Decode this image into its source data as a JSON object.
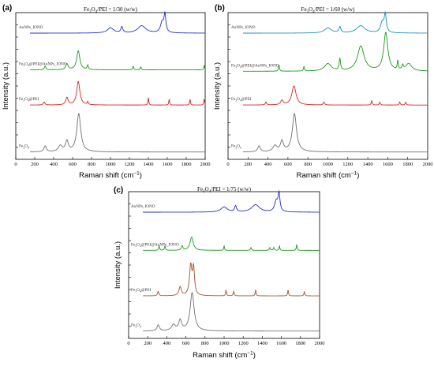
{
  "chart_data": [
    {
      "type": "line",
      "panel": "(a)",
      "title": "Fe3O4/PEI = 1/30 (w/w)",
      "title_parts": {
        "pre": "Fe",
        "sub1": "3",
        "mid": "O",
        "sub2": "4",
        "post": "/PEI = 1/30 (w/w)"
      },
      "xlabel": "Raman shift (cm",
      "xlabel_sup": "−1",
      "xlabel_close": ")",
      "ylabel": "Intensity (a.u.)",
      "xlim": [
        0,
        2000
      ],
      "xticks": [
        0,
        200,
        400,
        600,
        800,
        1000,
        1200,
        1400,
        1600,
        1800,
        2000
      ],
      "series": [
        {
          "name": "AuNPs_IONO",
          "color": "#1f2dd6",
          "baseline": 0.86,
          "range": [
            150,
            2000
          ],
          "peaks": [
            [
              1000,
              0.035,
              40
            ],
            [
              1120,
              0.04,
              12
            ],
            [
              1330,
              0.05,
              50
            ],
            [
              1545,
              0.07,
              20
            ],
            [
              1575,
              0.12,
              12
            ]
          ]
        },
        {
          "name": "Fe3O4@PEI@AuNPs_IONO",
          "color": "#1a9a1a",
          "baseline": 0.61,
          "range": [
            150,
            2000
          ],
          "peaks": [
            [
              310,
              0.025,
              10
            ],
            [
              540,
              0.04,
              15
            ],
            [
              660,
              0.13,
              20
            ],
            [
              760,
              0.03,
              8
            ],
            [
              1240,
              0.025,
              6
            ],
            [
              1320,
              0.02,
              6
            ],
            [
              1990,
              0.03,
              5
            ]
          ]
        },
        {
          "name": "Fe3O4@PEI",
          "color": "#e02020",
          "baseline": 0.37,
          "range": [
            150,
            2000
          ],
          "peaks": [
            [
              300,
              0.02,
              10
            ],
            [
              540,
              0.05,
              15
            ],
            [
              660,
              0.16,
              20
            ],
            [
              760,
              0.02,
              6
            ],
            [
              1400,
              0.05,
              5
            ],
            [
              1620,
              0.04,
              5
            ],
            [
              1840,
              0.04,
              5
            ],
            [
              1990,
              0.04,
              5
            ]
          ]
        },
        {
          "name": "Fe3O4",
          "color": "#707070",
          "baseline": 0.05,
          "range": [
            150,
            2000
          ],
          "peaks": [
            [
              310,
              0.04,
              15
            ],
            [
              470,
              0.04,
              25
            ],
            [
              540,
              0.07,
              18
            ],
            [
              665,
              0.26,
              25
            ]
          ]
        }
      ],
      "series_labels": [
        {
          "pre": "AuNPs_IONO"
        },
        {
          "pre": "Fe",
          "sub1": "3",
          "mid": "O",
          "sub2": "4",
          "post": "@PEI@AuNPs_IONO"
        },
        {
          "pre": "Fe",
          "sub1": "3",
          "mid": "O",
          "sub2": "4",
          "post": "@PEI"
        },
        {
          "pre": "Fe",
          "sub1": "3",
          "mid": "O",
          "sub2": "4",
          "post": ""
        }
      ]
    },
    {
      "type": "line",
      "panel": "(b)",
      "title": "Fe3O4/PEI = 1/60 (w/w)",
      "title_parts": {
        "pre": "Fe",
        "sub1": "3",
        "mid": "O",
        "sub2": "4",
        "post": "/PEI = 1/60 (w/w)"
      },
      "xlabel": "Raman shift (cm",
      "xlabel_sup": "−1",
      "xlabel_close": ")",
      "ylabel": "Intensity (a.u.)",
      "xlim": [
        0,
        2000
      ],
      "xticks": [
        0,
        200,
        400,
        600,
        800,
        1000,
        1200,
        1400,
        1600,
        1800,
        2000
      ],
      "series": [
        {
          "name": "AuNPs_IONO",
          "color": "#1b8fc0",
          "baseline": 0.86,
          "range": [
            150,
            2000
          ],
          "peaks": [
            [
              1000,
              0.035,
              40
            ],
            [
              1120,
              0.04,
              12
            ],
            [
              1330,
              0.05,
              50
            ],
            [
              1545,
              0.07,
              20
            ],
            [
              1575,
              0.12,
              12
            ]
          ]
        },
        {
          "name": "Fe3O4@PEI@AuNPs_IONO",
          "color": "#1a9a1a",
          "baseline": 0.6,
          "range": [
            150,
            2000
          ],
          "peaks": [
            [
              510,
              0.04,
              6
            ],
            [
              760,
              0.03,
              6
            ],
            [
              1000,
              0.05,
              40
            ],
            [
              1120,
              0.08,
              8
            ],
            [
              1330,
              0.17,
              40
            ],
            [
              1580,
              0.26,
              25
            ],
            [
              1700,
              0.06,
              6
            ],
            [
              1750,
              0.03,
              8
            ],
            [
              1810,
              0.05,
              35
            ]
          ]
        },
        {
          "name": "Fe3O4@PEI",
          "color": "#e02020",
          "baseline": 0.37,
          "range": [
            150,
            2000
          ],
          "peaks": [
            [
              380,
              0.02,
              8
            ],
            [
              540,
              0.03,
              15
            ],
            [
              660,
              0.13,
              25
            ],
            [
              960,
              0.02,
              8
            ],
            [
              1440,
              0.03,
              6
            ],
            [
              1520,
              0.02,
              6
            ],
            [
              1720,
              0.02,
              6
            ],
            [
              1780,
              0.02,
              6
            ]
          ]
        },
        {
          "name": "Fe3O4",
          "color": "#707070",
          "baseline": 0.05,
          "range": [
            150,
            2000
          ],
          "peaks": [
            [
              310,
              0.04,
              15
            ],
            [
              470,
              0.04,
              25
            ],
            [
              540,
              0.07,
              18
            ],
            [
              665,
              0.26,
              25
            ]
          ]
        }
      ],
      "series_labels": [
        {
          "pre": "AuNPs_IONO"
        },
        {
          "pre": "Fe",
          "sub1": "3",
          "mid": "O",
          "sub2": "4",
          "post": "@PEI@AuNPs_IONO"
        },
        {
          "pre": "Fe",
          "sub1": "3",
          "mid": "O",
          "sub2": "4",
          "post": "@PEI"
        },
        {
          "pre": "Fe",
          "sub1": "3",
          "mid": "O",
          "sub2": "4",
          "post": ""
        }
      ]
    },
    {
      "type": "line",
      "panel": "(c)",
      "title": "Fe3O4/PEI = 1/75 (w/w)",
      "title_parts": {
        "pre": "Fe",
        "sub1": "3",
        "mid": "O",
        "sub2": "4",
        "post": "/PEI = 1/75 (w/w)"
      },
      "xlabel": "Raman shift (cm",
      "xlabel_sup": "−1",
      "xlabel_close": ")",
      "ylabel": "Intensity (a.u.)",
      "xlim": [
        0,
        2000
      ],
      "xticks": [
        0,
        200,
        400,
        600,
        800,
        1000,
        1200,
        1400,
        1600,
        1800,
        2000
      ],
      "series": [
        {
          "name": "AuNPs_IONO",
          "color": "#1f2dd6",
          "baseline": 0.86,
          "range": [
            150,
            2000
          ],
          "peaks": [
            [
              1000,
              0.035,
              40
            ],
            [
              1120,
              0.04,
              12
            ],
            [
              1330,
              0.05,
              50
            ],
            [
              1545,
              0.07,
              20
            ],
            [
              1575,
              0.12,
              12
            ]
          ]
        },
        {
          "name": "Fe3O4@PEI@AuNPs_IONO",
          "color": "#1a9a1a",
          "baseline": 0.6,
          "range": [
            150,
            2000
          ],
          "peaks": [
            [
              320,
              0.03,
              6
            ],
            [
              380,
              0.03,
              6
            ],
            [
              560,
              0.03,
              10
            ],
            [
              660,
              0.09,
              20
            ],
            [
              1000,
              0.03,
              5
            ],
            [
              1280,
              0.02,
              6
            ],
            [
              1480,
              0.02,
              6
            ],
            [
              1520,
              0.02,
              6
            ],
            [
              1580,
              0.03,
              5
            ],
            [
              1760,
              0.04,
              5
            ]
          ]
        },
        {
          "name": "Fe3O4@PEI",
          "color": "#a0522d",
          "baseline": 0.29,
          "range": [
            150,
            2000
          ],
          "peaks": [
            [
              310,
              0.03,
              8
            ],
            [
              540,
              0.06,
              15
            ],
            [
              650,
              0.2,
              15
            ],
            [
              680,
              0.18,
              12
            ],
            [
              1020,
              0.04,
              5
            ],
            [
              1100,
              0.03,
              6
            ],
            [
              1330,
              0.04,
              5
            ],
            [
              1670,
              0.04,
              5
            ],
            [
              1840,
              0.03,
              5
            ]
          ]
        },
        {
          "name": "Fe3O4",
          "color": "#707070",
          "baseline": 0.05,
          "range": [
            150,
            2000
          ],
          "peaks": [
            [
              310,
              0.04,
              15
            ],
            [
              470,
              0.04,
              25
            ],
            [
              540,
              0.07,
              18
            ],
            [
              665,
              0.26,
              25
            ]
          ]
        }
      ],
      "series_labels": [
        {
          "pre": "AuNPs_IONO"
        },
        {
          "pre": "Fe",
          "sub1": "3",
          "mid": "O",
          "sub2": "4",
          "post": "@PEI@AuNPs_IONO"
        },
        {
          "pre": "Fe",
          "sub1": "3",
          "mid": "O",
          "sub2": "4",
          "post": "@PEI"
        },
        {
          "pre": "Fe",
          "sub1": "3",
          "mid": "O",
          "sub2": "4",
          "post": ""
        }
      ]
    }
  ]
}
